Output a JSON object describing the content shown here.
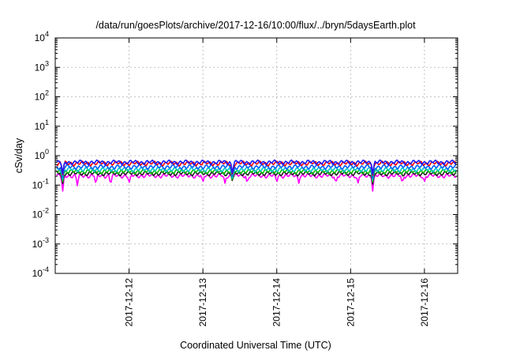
{
  "chart_data": {
    "type": "line",
    "title": "/data/run/goesPlots/archive/2017-12-16/10:00/flux/../bryn/5daysEarth.plot",
    "xlabel": "Coordinated Universal Time (UTC)",
    "ylabel": "cSv/day",
    "yscale": "log",
    "ylim": [
      0.0001,
      10000
    ],
    "xlim": [
      0.0,
      5.45
    ],
    "grid": true,
    "x_ticks": [
      {
        "x": 1.0,
        "label": "2017-12-12"
      },
      {
        "x": 2.0,
        "label": "2017-12-13"
      },
      {
        "x": 3.0,
        "label": "2017-12-14"
      },
      {
        "x": 4.0,
        "label": "2017-12-15"
      },
      {
        "x": 5.0,
        "label": "2017-12-16"
      }
    ],
    "y_ticks": [
      {
        "value": 0.0001,
        "base": "10",
        "exp": "-4"
      },
      {
        "value": 0.001,
        "base": "10",
        "exp": "-3"
      },
      {
        "value": 0.01,
        "base": "10",
        "exp": "-2"
      },
      {
        "value": 0.1,
        "base": "10",
        "exp": "-1"
      },
      {
        "value": 1,
        "base": "10",
        "exp": "0"
      },
      {
        "value": 10,
        "base": "10",
        "exp": "1"
      },
      {
        "value": 100,
        "base": "10",
        "exp": "2"
      },
      {
        "value": 1000,
        "base": "10",
        "exp": "3"
      },
      {
        "value": 10000,
        "base": "10",
        "exp": "4"
      }
    ],
    "series": [
      {
        "color": "#ff00ff",
        "base": 0.21,
        "dips": [
          [
            0.1,
            0.05
          ],
          [
            0.3,
            0.09
          ],
          [
            0.55,
            0.1
          ],
          [
            0.75,
            0.09
          ],
          [
            1.0,
            0.11
          ],
          [
            2.0,
            0.12
          ],
          [
            2.3,
            0.11
          ],
          [
            2.6,
            0.11
          ],
          [
            3.0,
            0.12
          ],
          [
            3.3,
            0.11
          ],
          [
            3.8,
            0.11
          ],
          [
            4.1,
            0.11
          ],
          [
            4.3,
            0.055
          ],
          [
            4.7,
            0.11
          ],
          [
            5.0,
            0.12
          ]
        ]
      },
      {
        "color": "#222222",
        "base": 0.25,
        "dips": [
          [
            0.1,
            0.1
          ],
          [
            2.4,
            0.13
          ],
          [
            4.3,
            0.1
          ]
        ]
      },
      {
        "color": "#00c000",
        "base": 0.29,
        "dips": [
          [
            0.1,
            0.12
          ],
          [
            2.4,
            0.14
          ],
          [
            4.3,
            0.12
          ]
        ]
      },
      {
        "color": "#00c8c8",
        "base": 0.34,
        "dips": [
          [
            0.1,
            0.14
          ],
          [
            2.4,
            0.15
          ],
          [
            4.3,
            0.14
          ]
        ]
      },
      {
        "color": "#0060ff",
        "base": 0.42,
        "dips": [
          [
            0.1,
            0.16
          ],
          [
            2.4,
            0.17
          ],
          [
            4.3,
            0.16
          ]
        ]
      },
      {
        "color": "#ff0000",
        "base": 0.55,
        "dips": [
          [
            0.1,
            0.2
          ],
          [
            2.4,
            0.2
          ],
          [
            4.3,
            0.2
          ]
        ]
      },
      {
        "color": "#1a1aff",
        "base": 0.6,
        "dips": [
          [
            0.1,
            0.22
          ],
          [
            2.4,
            0.22
          ],
          [
            4.3,
            0.22
          ]
        ]
      }
    ]
  }
}
